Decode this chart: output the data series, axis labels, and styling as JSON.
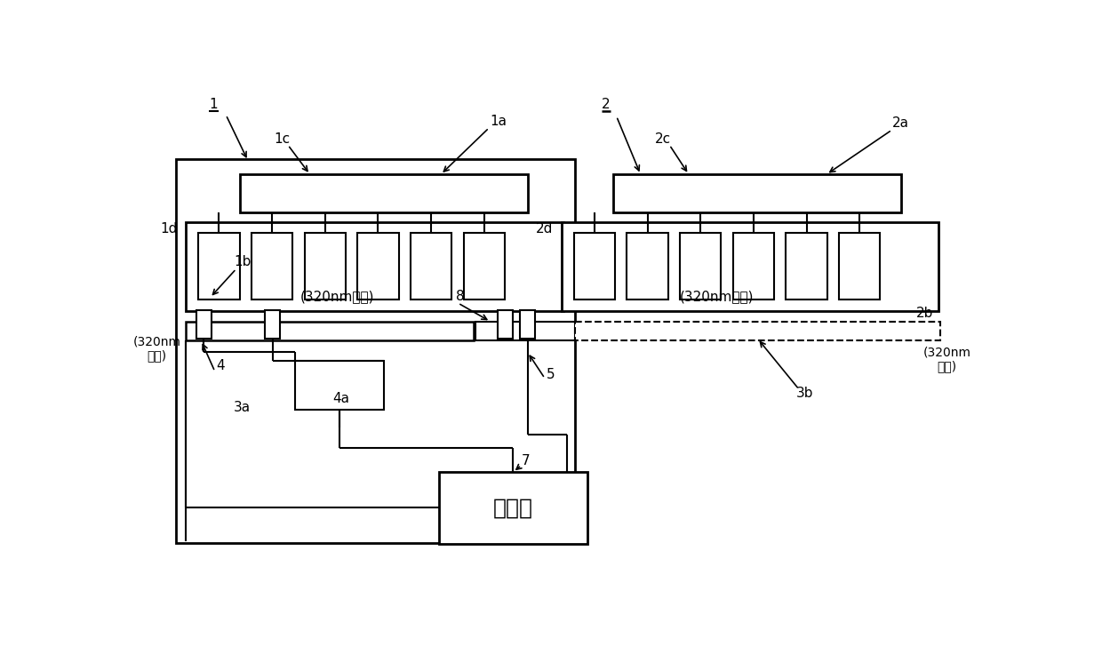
{
  "bg_color": "#ffffff",
  "line_color": "#000000",
  "ctrl_text": "控制部",
  "note_1_center": "(320nm以上)",
  "note_2_center": "(320nm以下)",
  "note_1_side": "(320nm\n以上)",
  "note_2_side": "(320nm\n以下)"
}
